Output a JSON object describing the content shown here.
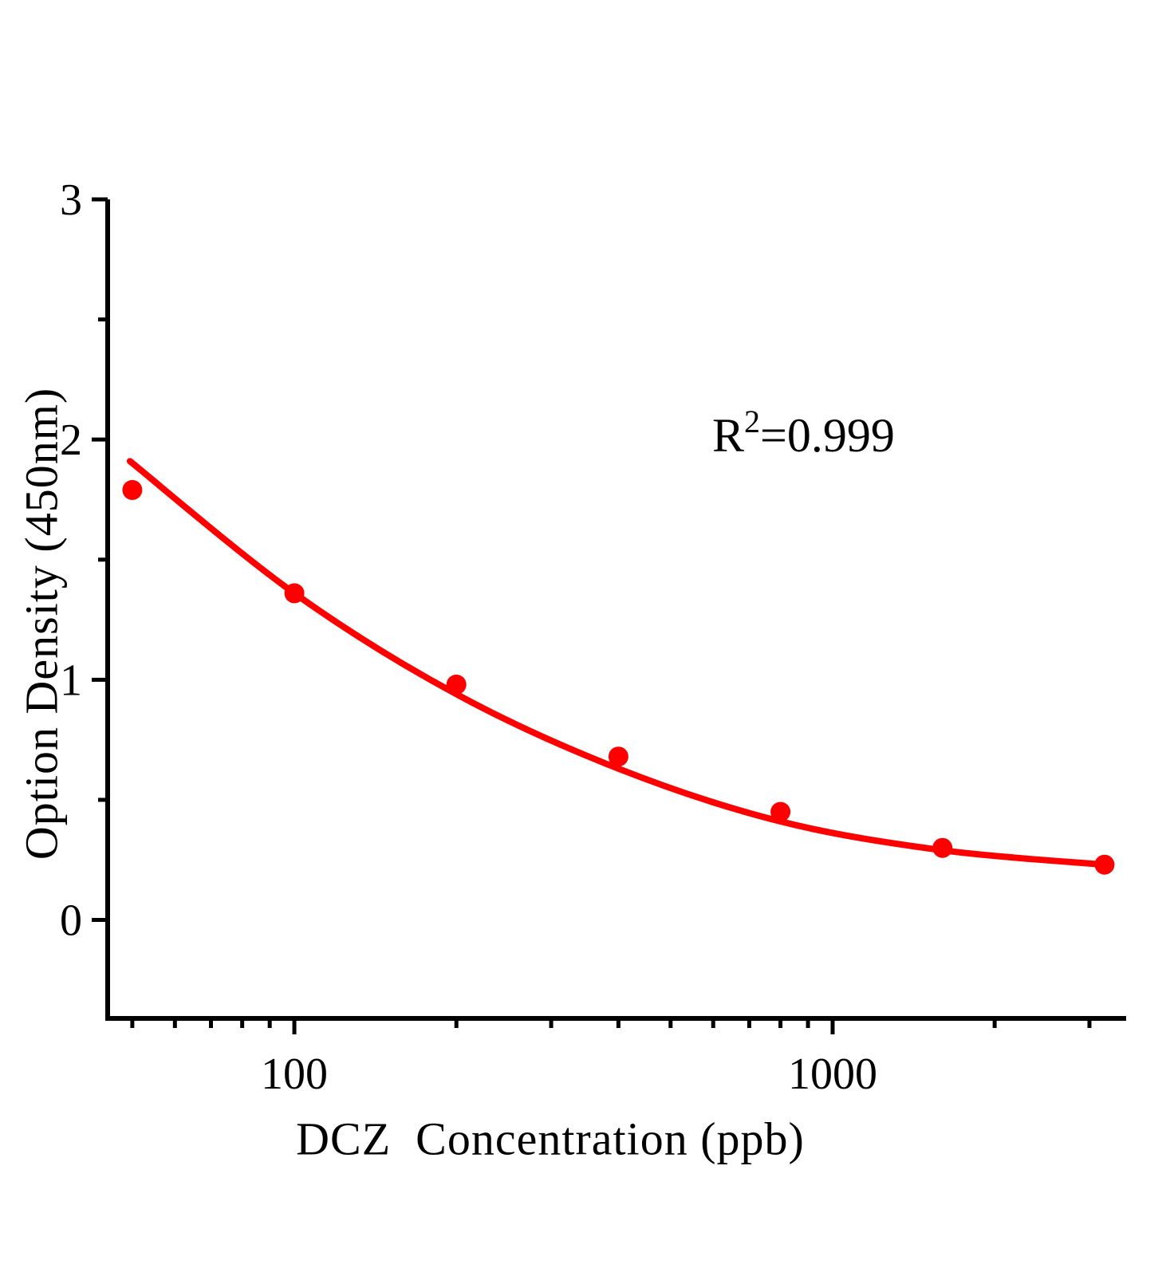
{
  "chart_data": {
    "type": "scatter",
    "title": "",
    "xlabel": "DCZ  Concentration (ppb)",
    "ylabel": "Option Density (450nm)",
    "annotation": {
      "base": "R",
      "exponent": "2",
      "value": "=0.999"
    },
    "x_scale": "log",
    "y_scale": "linear",
    "grid": false,
    "legend": "none",
    "xlim": [
      45,
      3510
    ],
    "ylim": [
      -0.41,
      3
    ],
    "colors": {
      "series": "#ff0000",
      "axis": "#000000",
      "background": "#ffffff"
    },
    "x_axis": {
      "major_ticks": [
        {
          "value": 100,
          "label": "100"
        },
        {
          "value": 1000,
          "label": "1000"
        }
      ],
      "minor_ticks": [
        50,
        60,
        70,
        80,
        90,
        200,
        300,
        400,
        500,
        600,
        700,
        800,
        900,
        2000,
        3000
      ]
    },
    "y_axis": {
      "major_ticks": [
        {
          "value": 0,
          "label": "0"
        },
        {
          "value": 1,
          "label": "1"
        },
        {
          "value": 2,
          "label": "2"
        },
        {
          "value": 3,
          "label": "3"
        }
      ],
      "minor_ticks": [
        0.5,
        1.5,
        2.5
      ]
    },
    "series": [
      {
        "name": "standard-points",
        "type": "scatter",
        "marker": "circle",
        "marker_radius": 12.5,
        "color": "#ff0000",
        "points": [
          {
            "x": 50,
            "y": 1.79
          },
          {
            "x": 100,
            "y": 1.36
          },
          {
            "x": 200,
            "y": 0.98
          },
          {
            "x": 400,
            "y": 0.68
          },
          {
            "x": 800,
            "y": 0.45
          },
          {
            "x": 1600,
            "y": 0.3
          },
          {
            "x": 3200,
            "y": 0.23
          }
        ]
      }
    ],
    "fit_curve": {
      "name": "fit-curve",
      "color": "#ff0000",
      "stroke_width": 8,
      "points": [
        {
          "x": 49.5,
          "y": 1.91
        },
        {
          "x": 100,
          "y": 1.36
        },
        {
          "x": 200,
          "y": 0.94
        },
        {
          "x": 400,
          "y": 0.63
        },
        {
          "x": 800,
          "y": 0.41
        },
        {
          "x": 1600,
          "y": 0.29
        },
        {
          "x": 3200,
          "y": 0.23
        }
      ]
    }
  }
}
